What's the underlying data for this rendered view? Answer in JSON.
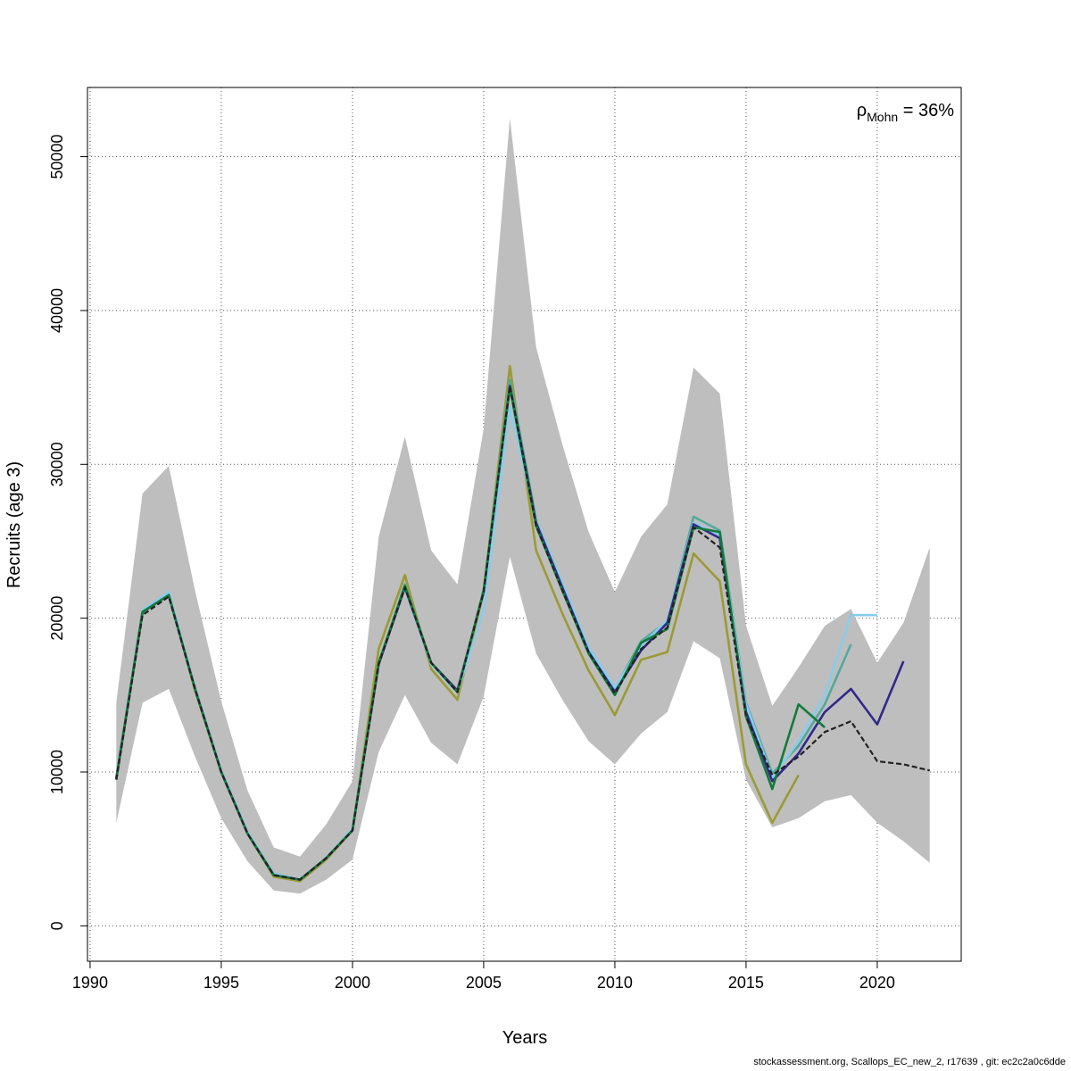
{
  "chart_data": {
    "type": "line",
    "xlabel": "Years",
    "ylabel": "Recruits (age 3)",
    "xlim": [
      1989.9,
      2023.2
    ],
    "ylim": [
      -2300,
      54500
    ],
    "x_ticks": [
      1990,
      1995,
      2000,
      2005,
      2010,
      2015,
      2020
    ],
    "y_ticks": [
      0,
      10000,
      20000,
      30000,
      40000,
      50000
    ],
    "grid": true,
    "annotation": {
      "symbol": "ρ",
      "subscript": "Mohn",
      "text": " = 36%"
    },
    "band": {
      "color": "#bebebe",
      "x": [
        1991,
        1992,
        1993,
        1994,
        1995,
        1996,
        1997,
        1998,
        1999,
        2000,
        2001,
        2002,
        2003,
        2004,
        2005,
        2006,
        2007,
        2008,
        2009,
        2010,
        2011,
        2012,
        2013,
        2014,
        2015,
        2016,
        2017,
        2018,
        2019,
        2020,
        2021,
        2022
      ],
      "upper": [
        14500,
        28100,
        29900,
        21800,
        14600,
        8800,
        5100,
        4500,
        6600,
        9400,
        25300,
        31800,
        24400,
        22200,
        32300,
        52500,
        37600,
        31300,
        25600,
        21700,
        25300,
        27400,
        36300,
        34600,
        19500,
        14300,
        16800,
        19500,
        20600,
        17100,
        19700,
        24600
      ],
      "lower": [
        6700,
        14500,
        15400,
        11000,
        7000,
        4200,
        2300,
        2100,
        3000,
        4300,
        11300,
        15000,
        11900,
        10500,
        14900,
        24000,
        17700,
        14700,
        12000,
        10500,
        12500,
        13900,
        18500,
        17400,
        9500,
        6400,
        7000,
        8100,
        8500,
        6700,
        5500,
        4100
      ]
    },
    "series": [
      {
        "color": "#9b9a35",
        "x": [
          1991,
          1992,
          1993,
          1994,
          1995,
          1996,
          1997,
          1998,
          1999,
          2000,
          2001,
          2002,
          2003,
          2004,
          2005,
          2006,
          2007,
          2008,
          2009,
          2010,
          2011,
          2012,
          2013,
          2014,
          2015,
          2016,
          2017
        ],
        "values": [
          9600,
          20500,
          21600,
          15300,
          10000,
          6000,
          3200,
          2900,
          4300,
          6200,
          18000,
          22800,
          16700,
          14700,
          21700,
          36400,
          24400,
          20300,
          16600,
          13700,
          17300,
          17800,
          24200,
          22400,
          10500,
          6700,
          9800
        ]
      },
      {
        "color": "#54a99c",
        "x": [
          1991,
          1992,
          1993,
          1994,
          1995,
          1996,
          1997,
          1998,
          1999,
          2000,
          2001,
          2002,
          2003,
          2004,
          2005,
          2006,
          2007,
          2008,
          2009,
          2010,
          2011,
          2012,
          2013,
          2014,
          2015,
          2016,
          2017,
          2018,
          2019
        ],
        "values": [
          9600,
          20400,
          21600,
          15500,
          10100,
          6100,
          3400,
          3000,
          4400,
          6300,
          17000,
          22200,
          17100,
          15200,
          21800,
          35500,
          26400,
          22200,
          18000,
          15400,
          18500,
          19800,
          26600,
          25700,
          14500,
          9900,
          11700,
          14400,
          18300
        ]
      },
      {
        "color": "#89ccec",
        "x": [
          1991,
          1992,
          1993,
          1994,
          1995,
          1996,
          1997,
          1998,
          1999,
          2000,
          2001,
          2002,
          2003,
          2004,
          2005,
          2006,
          2007,
          2008,
          2009,
          2010,
          2011,
          2012,
          2013,
          2014,
          2015,
          2016,
          2017,
          2018,
          2019,
          2020
        ],
        "values": [
          9600,
          20500,
          21700,
          15500,
          10100,
          6100,
          3400,
          3000,
          4400,
          6300,
          17000,
          22000,
          17000,
          15200,
          20500,
          33700,
          26400,
          22300,
          18100,
          15500,
          18200,
          19900,
          26200,
          25400,
          14400,
          9600,
          12000,
          15000,
          20200,
          20200
        ]
      },
      {
        "color": "#32288a",
        "x": [
          1991,
          1992,
          1993,
          1994,
          1995,
          1996,
          1997,
          1998,
          1999,
          2000,
          2001,
          2002,
          2003,
          2004,
          2005,
          2006,
          2007,
          2008,
          2009,
          2010,
          2011,
          2012,
          2013,
          2014,
          2015,
          2016,
          2017,
          2018,
          2019,
          2020,
          2021
        ],
        "values": [
          9600,
          20400,
          21500,
          15400,
          10000,
          6000,
          3300,
          3000,
          4400,
          6200,
          17000,
          22000,
          17100,
          15300,
          21700,
          35100,
          26200,
          22000,
          17800,
          15200,
          17900,
          19700,
          26100,
          25200,
          13900,
          9400,
          11200,
          13900,
          15400,
          13100,
          17200
        ]
      },
      {
        "color": "#137a3a",
        "x": [
          1991,
          1992,
          1993,
          1994,
          1995,
          1996,
          1997,
          1998,
          1999,
          2000,
          2001,
          2002,
          2003,
          2004,
          2005,
          2006,
          2007,
          2008,
          2009,
          2010,
          2011,
          2012,
          2013,
          2014,
          2015,
          2016,
          2017,
          2018
        ],
        "values": [
          9500,
          20400,
          21500,
          15400,
          10000,
          6000,
          3300,
          3000,
          4400,
          6200,
          17100,
          22100,
          17100,
          15200,
          21800,
          35000,
          26000,
          21800,
          17700,
          15000,
          18400,
          19300,
          25900,
          25600,
          13600,
          8900,
          14400,
          12900
        ]
      },
      {
        "color": "#222222",
        "dashed": true,
        "x": [
          1991,
          1992,
          1993,
          1994,
          1995,
          1996,
          1997,
          1998,
          1999,
          2000,
          2001,
          2002,
          2003,
          2004,
          2005,
          2006,
          2007,
          2008,
          2009,
          2010,
          2011,
          2012,
          2013,
          2014,
          2015,
          2016,
          2017,
          2018,
          2019,
          2020,
          2021,
          2022
        ],
        "values": [
          9500,
          20200,
          21400,
          15400,
          10000,
          6000,
          3300,
          3000,
          4400,
          6200,
          17000,
          22000,
          17100,
          15200,
          21700,
          35100,
          26000,
          21800,
          17800,
          15100,
          18000,
          19400,
          25900,
          24600,
          13600,
          9800,
          11000,
          12600,
          13300,
          10700,
          10500,
          10100
        ]
      }
    ]
  },
  "footer": {
    "credit": "stockassessment.org, Scallops_EC_new_2, r17639 , git: ec2c2a0c6dde"
  }
}
